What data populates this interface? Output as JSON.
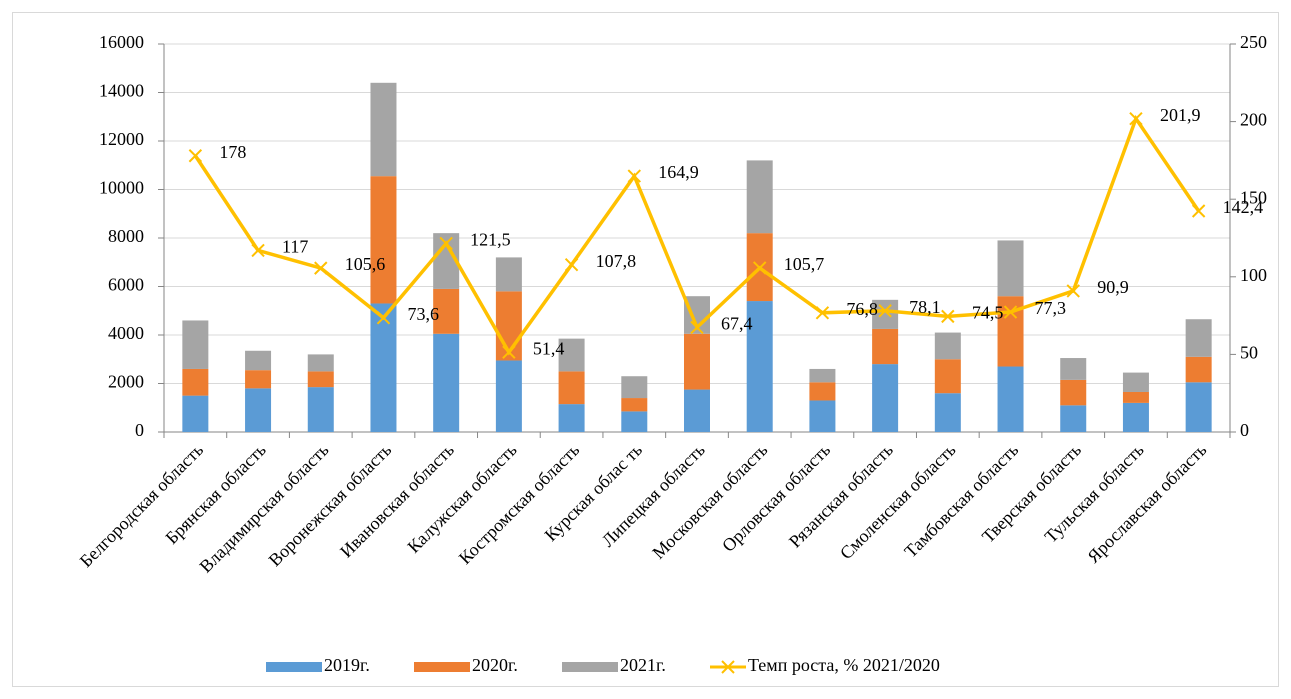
{
  "chart_data": {
    "type": "bar",
    "categories": [
      "Белгородская область",
      "Брянская область",
      "Владимирская область",
      "Воронежская область",
      "Ивановская область",
      "Калужская область",
      "Костромская область",
      "Курская облас ть",
      "Липецкая область",
      "Московская область",
      "Орловская область",
      "Рязанская область",
      "Смоленская область",
      "Тамбовская область",
      "Тверская область",
      "Тульская область",
      "Ярославская область"
    ],
    "series": [
      {
        "name": "2019г.",
        "color": "#5b9bd5",
        "values": [
          1500,
          1800,
          1850,
          5300,
          4050,
          2950,
          1150,
          850,
          1750,
          5400,
          1300,
          2800,
          1600,
          2700,
          1100,
          1200,
          2050
        ]
      },
      {
        "name": "2020г.",
        "color": "#ed7d31",
        "values": [
          1100,
          750,
          650,
          5250,
          1850,
          2850,
          1350,
          550,
          2300,
          2800,
          750,
          1450,
          1400,
          2900,
          1050,
          450,
          1050
        ]
      },
      {
        "name": "2021г.",
        "color": "#a5a5a5",
        "values": [
          2000,
          800,
          700,
          3850,
          2300,
          1400,
          1350,
          900,
          1550,
          3000,
          550,
          1200,
          1100,
          2300,
          900,
          800,
          1550
        ]
      },
      {
        "name": "Темп роста, % 2021/2020",
        "color": "#ffc000",
        "type": "line",
        "axis": "y2",
        "values": [
          178,
          117,
          105.6,
          73.6,
          121.5,
          51.4,
          107.8,
          164.9,
          67.4,
          105.7,
          76.8,
          78.1,
          74.5,
          77.3,
          90.9,
          201.9,
          142.4
        ],
        "value_labels": [
          "178",
          "117",
          "105,6",
          "73,6",
          "121,5",
          "51,4",
          "107,8",
          "164,9",
          "67,4",
          "105,7",
          "76,8",
          "78,1",
          "74,5",
          "77,3",
          "90,9",
          "201,9",
          "142,4"
        ]
      }
    ],
    "stacked": true,
    "ylim": [
      0,
      16000
    ],
    "yticks": [
      0,
      2000,
      4000,
      6000,
      8000,
      10000,
      12000,
      14000,
      16000
    ],
    "y2lim": [
      0,
      250
    ],
    "y2ticks": [
      0,
      50,
      100,
      150,
      200,
      250
    ],
    "grid": true,
    "legend": "bottom"
  }
}
